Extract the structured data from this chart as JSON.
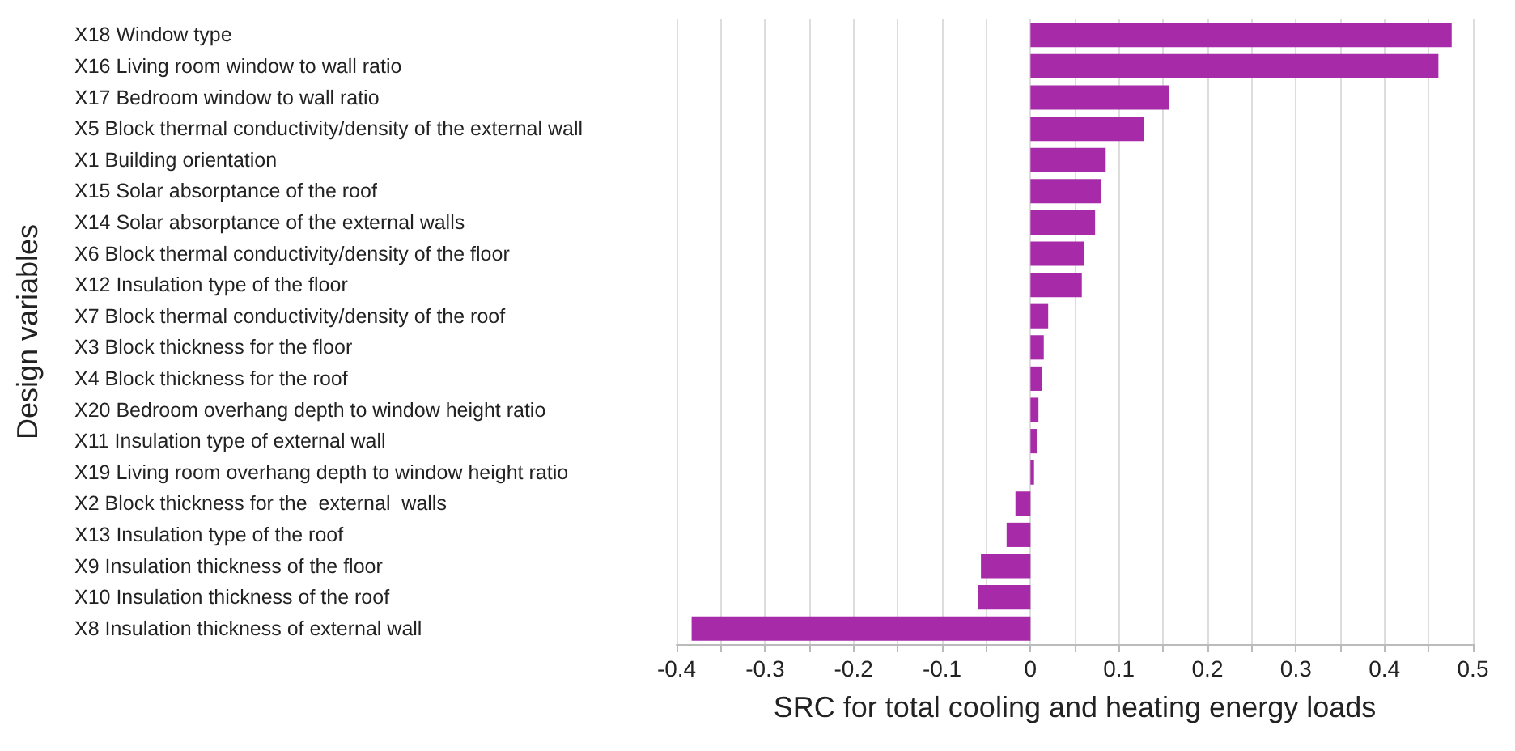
{
  "chart_data": {
    "type": "bar",
    "orientation": "horizontal",
    "xlabel": "SRC for total cooling and heating energy loads",
    "ylabel": "Design variables",
    "categories": [
      "X18 Window type",
      "X16 Living room window to wall ratio",
      "X17 Bedroom window to wall ratio",
      "X5 Block thermal conductivity/density of the external wall",
      "X1 Building orientation",
      "X15 Solar absorptance of the roof",
      "X14 Solar absorptance of the external walls",
      "X6 Block thermal conductivity/density of the floor",
      "X12 Insulation type of the floor",
      "X7 Block thermal conductivity/density of the roof",
      "X3 Block thickness for the floor",
      "X4 Block thickness for the roof",
      "X20 Bedroom overhang depth to window height ratio",
      "X11 Insulation type of external wall",
      "X19 Living room overhang depth to window height ratio",
      "X2 Block thickness for the  external  walls",
      "X13 Insulation type of the roof",
      "X9 Insulation thickness of the floor",
      "X10 Insulation thickness of the roof",
      "X8 Insulation thickness of external wall"
    ],
    "values": [
      0.476,
      0.461,
      0.157,
      0.128,
      0.085,
      0.08,
      0.073,
      0.061,
      0.058,
      0.02,
      0.015,
      0.013,
      0.009,
      0.007,
      0.004,
      -0.017,
      -0.027,
      -0.056,
      -0.059,
      -0.383
    ],
    "color": "#a72aa8",
    "xlim": [
      -0.4,
      0.5
    ],
    "xticks": [
      -0.4,
      -0.3,
      -0.2,
      -0.1,
      0,
      0.1,
      0.2,
      0.3,
      0.4,
      0.5
    ],
    "grid": "x"
  }
}
